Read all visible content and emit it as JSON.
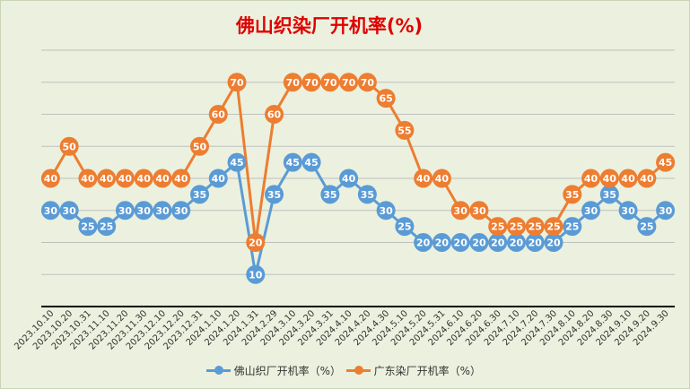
{
  "chart_data": {
    "type": "line",
    "title": "佛山织染厂开机率(%)",
    "categories": [
      "2023.10.10",
      "2023.10.20",
      "2023.10.31",
      "2023.11.10",
      "2023.11.20",
      "2023.11.30",
      "2023.12.10",
      "2023.12.20",
      "2023.12.31",
      "2024.1.10",
      "2024.1.20",
      "2024.1.31",
      "2024.2.29",
      "2024.3.10",
      "2024.3.20",
      "2024.3.31",
      "2024.4.10",
      "2024.4.20",
      "2024.4.30",
      "2024.5.10",
      "2024.5.20",
      "2024.5.31",
      "2024.6.10",
      "2024.6.20",
      "2024.6.30",
      "2024.7.10",
      "2024.7.20",
      "2024.7.30",
      "2024.8.10",
      "2024.8.20",
      "2024.8.30",
      "2024.9.10",
      "2024.9.20",
      "2024.9.30"
    ],
    "series": [
      {
        "name": "佛山织厂开机率（%）",
        "color": "#5b9bd5",
        "values": [
          30,
          30,
          25,
          25,
          30,
          30,
          30,
          30,
          35,
          40,
          45,
          10,
          35,
          45,
          45,
          35,
          40,
          35,
          30,
          25,
          20,
          20,
          20,
          20,
          20,
          20,
          20,
          20,
          25,
          30,
          35,
          30,
          25,
          30
        ]
      },
      {
        "name": "广东染厂开机率（%）",
        "color": "#ed7d31",
        "values": [
          40,
          50,
          40,
          40,
          40,
          40,
          40,
          40,
          50,
          60,
          70,
          20,
          60,
          70,
          70,
          70,
          70,
          70,
          65,
          55,
          40,
          40,
          30,
          30,
          25,
          25,
          25,
          25,
          35,
          40,
          40,
          40,
          40,
          45
        ]
      }
    ],
    "ylim": [
      0,
      80
    ],
    "grid": true,
    "legend": "bottom"
  }
}
